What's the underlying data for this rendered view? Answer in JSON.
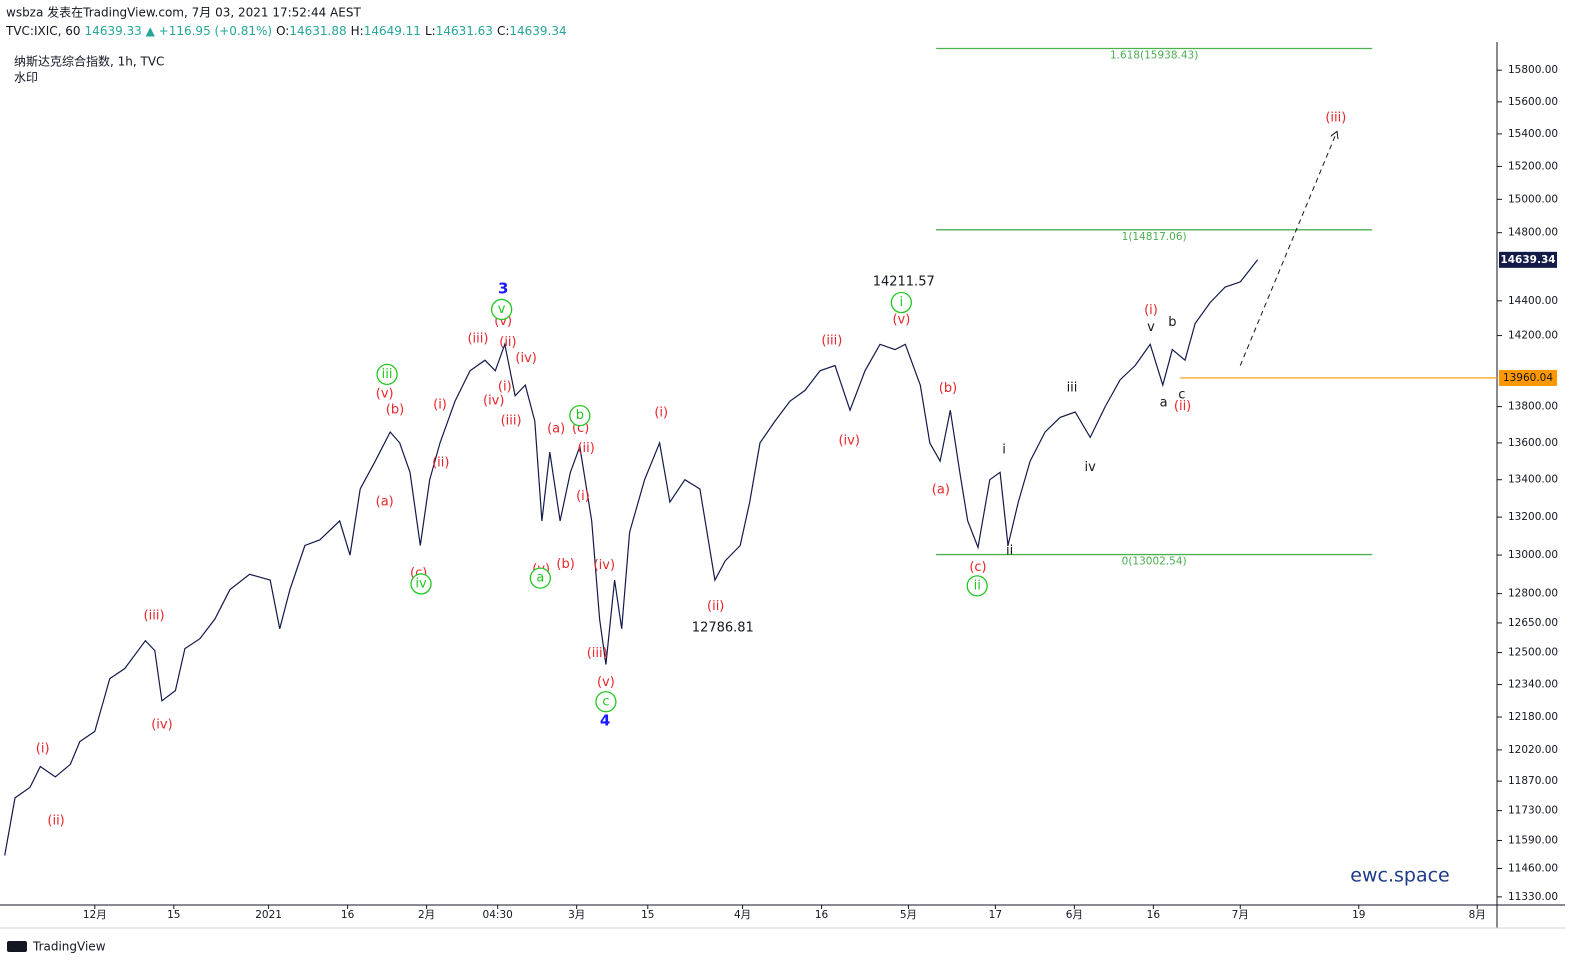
{
  "header": {
    "byline": "wsbza 发表在TradingView.com, 7月 03, 2021 17:52:44 AEST",
    "quote": [
      "TVC:IXIC, 60",
      "14639.33 ▲ +116.95 (+0.81%)",
      "O:",
      "14631.88",
      "H:",
      "14649.11",
      "L:",
      "14631.63",
      "C:",
      "14639.34"
    ]
  },
  "chart_data": {
    "type": "line",
    "log": true,
    "legend": "纳斯达克综合指数, 1h, TVC",
    "watermark": "水印",
    "brand": "ewc.space",
    "footer": "TradingView",
    "series": [
      {
        "name": "纳斯达克综合指数, 1h, TVC",
        "color": "#131a4a",
        "x": [
          0.6,
          1.9,
          3.8,
          5.1,
          7.0,
          8.9,
          10.1,
          12.0,
          13.9,
          15.8,
          18.4,
          19.6,
          20.5,
          22.2,
          23.4,
          25.3,
          27.2,
          29.1,
          31.6,
          34.2,
          35.4,
          36.7,
          38.6,
          40.5,
          43.0,
          44.3,
          45.6,
          47.5,
          49.4,
          50.6,
          51.9,
          53.2,
          54.4,
          55.7,
          57.6,
          59.5,
          61.4,
          62.7,
          63.9,
          65.2,
          66.5,
          67.7,
          68.6,
          69.6,
          70.9,
          72.2,
          73.4,
          74.9,
          75.9,
          76.7,
          77.8,
          78.7,
          79.7,
          81.6,
          83.5,
          84.8,
          86.7,
          88.6,
          90.5,
          91.8,
          93.7,
          94.9,
          96.2,
          98.1,
          100.0,
          101.9,
          103.8,
          105.7,
          107.6,
          109.5,
          111.4,
          113.3,
          114.6,
          116.5,
          117.7,
          119.0,
          120.3,
          121.5,
          122.5,
          123.8,
          125.3,
          126.6,
          127.6,
          128.9,
          130.4,
          132.3,
          134.2,
          136.1,
          138.0,
          139.9,
          141.8,
          143.7,
          145.6,
          147.2,
          148.4,
          150.0,
          151.3,
          153.2,
          155.1,
          157.0,
          158.2,
          159.2
        ],
        "values": [
          11520,
          11790,
          11840,
          11940,
          11890,
          11950,
          12060,
          12110,
          12370,
          12420,
          12560,
          12510,
          12260,
          12310,
          12520,
          12570,
          12670,
          12820,
          12900,
          12870,
          12620,
          12820,
          13050,
          13080,
          13180,
          13000,
          13350,
          13500,
          13660,
          13600,
          13440,
          13050,
          13400,
          13600,
          13830,
          14000,
          14060,
          14000,
          14150,
          13860,
          13920,
          13720,
          13180,
          13550,
          13180,
          13440,
          13580,
          13180,
          12670,
          12440,
          12870,
          12620,
          13120,
          13400,
          13600,
          13280,
          13400,
          13350,
          12870,
          12970,
          13050,
          13280,
          13600,
          13720,
          13830,
          13890,
          14000,
          14030,
          13780,
          14000,
          14150,
          14120,
          14150,
          13920,
          13600,
          13500,
          13780,
          13440,
          13180,
          13040,
          13400,
          13440,
          13050,
          13280,
          13500,
          13660,
          13740,
          13770,
          13630,
          13800,
          13950,
          14030,
          14150,
          13920,
          14120,
          14060,
          14270,
          14390,
          14480,
          14510,
          14580,
          14639.34
        ]
      }
    ],
    "xlim": [
      0,
      189.5
    ],
    "xticks": [
      {
        "value": 12,
        "label": "12月"
      },
      {
        "value": 22,
        "label": "15"
      },
      {
        "value": 34,
        "label": "2021"
      },
      {
        "value": 44,
        "label": "16"
      },
      {
        "value": 54,
        "label": "2月"
      },
      {
        "value": 63,
        "label": "04:30"
      },
      {
        "value": 73,
        "label": "3月"
      },
      {
        "value": 82,
        "label": "15"
      },
      {
        "value": 94,
        "label": "4月"
      },
      {
        "value": 104,
        "label": "16"
      },
      {
        "value": 115,
        "label": "5月"
      },
      {
        "value": 126,
        "label": "17"
      },
      {
        "value": 136,
        "label": "6月"
      },
      {
        "value": 146,
        "label": "16"
      },
      {
        "value": 157,
        "label": "7月"
      },
      {
        "value": 172,
        "label": "19"
      },
      {
        "value": 187,
        "label": "8月"
      }
    ],
    "ylim": [
      11293,
      15980
    ],
    "yticks": [
      {
        "value": 15800,
        "label": "15800.00"
      },
      {
        "value": 15600,
        "label": "15600.00"
      },
      {
        "value": 15400,
        "label": "15400.00"
      },
      {
        "value": 15200,
        "label": "15200.00"
      },
      {
        "value": 15000,
        "label": "15000.00"
      },
      {
        "value": 14800,
        "label": "14800.00"
      },
      {
        "value": 14400,
        "label": "14400.00"
      },
      {
        "value": 14200,
        "label": "14200.00"
      },
      {
        "value": 13800,
        "label": "13800.00"
      },
      {
        "value": 13600,
        "label": "13600.00"
      },
      {
        "value": 13400,
        "label": "13400.00"
      },
      {
        "value": 13200,
        "label": "13200.00"
      },
      {
        "value": 13000,
        "label": "13000.00"
      },
      {
        "value": 12800,
        "label": "12800.00"
      },
      {
        "value": 12650,
        "label": "12650.00"
      },
      {
        "value": 12500,
        "label": "12500.00"
      },
      {
        "value": 12340,
        "label": "12340.00"
      },
      {
        "value": 12180,
        "label": "12180.00"
      },
      {
        "value": 12020,
        "label": "12020.00"
      },
      {
        "value": 11870,
        "label": "11870.00"
      },
      {
        "value": 11730,
        "label": "11730.00"
      },
      {
        "value": 11590,
        "label": "11590.00"
      },
      {
        "value": 11460,
        "label": "11460.00"
      },
      {
        "value": 11330,
        "label": "11330.00"
      }
    ],
    "last_price": 14639.34,
    "support": {
      "value": 13960.04,
      "from_x": 149.4,
      "color": "#ff9800"
    },
    "fib": {
      "color": "#4caf50",
      "x": [
        118.5,
        173.7
      ],
      "levels": [
        {
          "value": 15938.43,
          "label": "1.618(15938.43)"
        },
        {
          "value": 14817.06,
          "label": "1(14817.06)"
        },
        {
          "value": 13002.54,
          "label": "0(13002.54)"
        }
      ]
    },
    "arrow": {
      "from": [
        157.0,
        14030
      ],
      "to": [
        169.2,
        15410
      ]
    },
    "wave_labels": [
      {
        "color": "#e8262b",
        "circled": false,
        "items": [
          {
            "text": "(i)",
            "x": 5.4,
            "price": 12025
          },
          {
            "text": "(ii)",
            "x": 7.1,
            "price": 11680
          },
          {
            "text": "(iii)",
            "x": 19.5,
            "price": 12685
          },
          {
            "text": "(iv)",
            "x": 20.5,
            "price": 12140
          },
          {
            "text": "(a)",
            "x": 48.7,
            "price": 13280
          },
          {
            "text": "(b)",
            "x": 50.0,
            "price": 13780
          },
          {
            "text": "(v)",
            "x": 48.7,
            "price": 13870
          },
          {
            "text": "(c)",
            "x": 53.0,
            "price": 12905
          },
          {
            "text": "(i)",
            "x": 55.7,
            "price": 13810
          },
          {
            "text": "(ii)",
            "x": 55.8,
            "price": 13490
          },
          {
            "text": "(iii)",
            "x": 60.5,
            "price": 14180
          },
          {
            "text": "(iv)",
            "x": 62.5,
            "price": 13830
          },
          {
            "text": "(v)",
            "x": 63.7,
            "price": 14280
          },
          {
            "text": "(ii)",
            "x": 64.3,
            "price": 14160
          },
          {
            "text": "(iv)",
            "x": 66.6,
            "price": 14070
          },
          {
            "text": "(i)",
            "x": 63.9,
            "price": 13910
          },
          {
            "text": "(iii)",
            "x": 64.7,
            "price": 13720
          },
          {
            "text": "(v)",
            "x": 68.5,
            "price": 12925
          },
          {
            "text": "(a)",
            "x": 70.4,
            "price": 13675
          },
          {
            "text": "(b)",
            "x": 71.6,
            "price": 12950
          },
          {
            "text": "(c)",
            "x": 73.5,
            "price": 13680
          },
          {
            "text": "(ii)",
            "x": 74.2,
            "price": 13570
          },
          {
            "text": "(i)",
            "x": 73.8,
            "price": 13310
          },
          {
            "text": "(iv)",
            "x": 76.5,
            "price": 12945
          },
          {
            "text": "(iii)",
            "x": 75.6,
            "price": 12495
          },
          {
            "text": "(v)",
            "x": 76.7,
            "price": 12350
          },
          {
            "text": "(i)",
            "x": 83.7,
            "price": 13765
          },
          {
            "text": "(ii)",
            "x": 90.6,
            "price": 12735
          },
          {
            "text": "(iii)",
            "x": 105.3,
            "price": 14170
          },
          {
            "text": "(iv)",
            "x": 107.5,
            "price": 13610
          },
          {
            "text": "(v)",
            "x": 114.1,
            "price": 14290
          },
          {
            "text": "(b)",
            "x": 120.0,
            "price": 13900
          },
          {
            "text": "(a)",
            "x": 119.1,
            "price": 13345
          },
          {
            "text": "(c)",
            "x": 123.8,
            "price": 12935
          },
          {
            "text": "(i)",
            "x": 145.7,
            "price": 14345
          },
          {
            "text": "(ii)",
            "x": 149.7,
            "price": 13800
          },
          {
            "text": "(iii)",
            "x": 169.1,
            "price": 15500
          }
        ]
      },
      {
        "color": "#22c722",
        "circled": true,
        "items": [
          {
            "text": "iii",
            "x": 49.0,
            "price": 13980
          },
          {
            "text": "iv",
            "x": 53.3,
            "price": 12850
          },
          {
            "text": "v",
            "x": 63.5,
            "price": 14350
          },
          {
            "text": "a",
            "x": 68.4,
            "price": 12880
          },
          {
            "text": "b",
            "x": 73.4,
            "price": 13750
          },
          {
            "text": "c",
            "x": 76.7,
            "price": 12255
          },
          {
            "text": "i",
            "x": 114.1,
            "price": 14390
          },
          {
            "text": "ii",
            "x": 123.7,
            "price": 12840
          }
        ]
      },
      {
        "color": "#1a1aff",
        "circled": false,
        "items": [
          {
            "text": "3",
            "x": 63.7,
            "price": 14470
          },
          {
            "text": "4",
            "x": 76.6,
            "price": 12160
          }
        ]
      },
      {
        "color": "#131722",
        "circled": false,
        "items": [
          {
            "text": "14211.57",
            "x": 114.4,
            "price": 14510
          },
          {
            "text": "12786.81",
            "x": 91.5,
            "price": 12625
          },
          {
            "text": "i",
            "x": 127.1,
            "price": 13560
          },
          {
            "text": "ii",
            "x": 127.8,
            "price": 13020
          },
          {
            "text": "iii",
            "x": 135.7,
            "price": 13905
          },
          {
            "text": "iv",
            "x": 138.0,
            "price": 13465
          },
          {
            "text": "v",
            "x": 145.7,
            "price": 14245
          },
          {
            "text": "a",
            "x": 147.3,
            "price": 13820
          },
          {
            "text": "b",
            "x": 148.4,
            "price": 14275
          },
          {
            "text": "c",
            "x": 149.6,
            "price": 13865
          }
        ]
      }
    ]
  }
}
